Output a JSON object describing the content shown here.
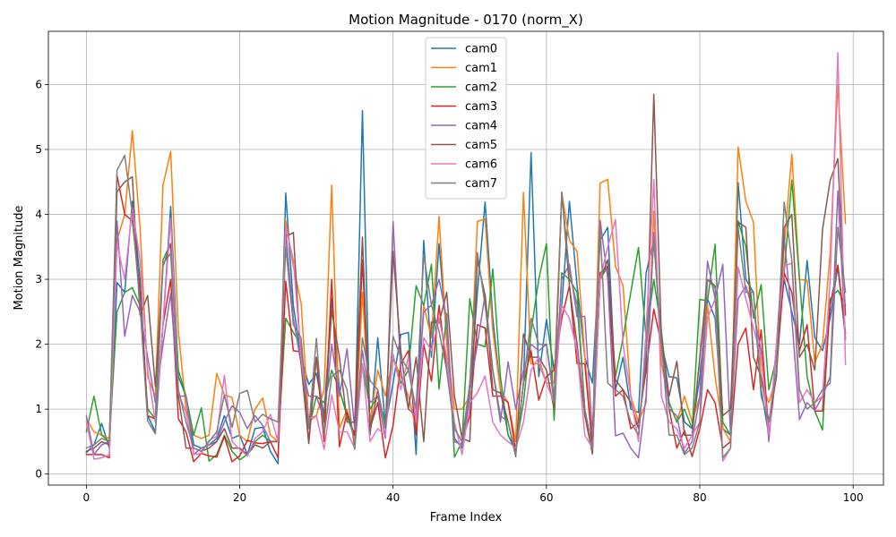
{
  "chart_data": {
    "type": "line",
    "title": "Motion Magnitude - 0170 (norm_X)",
    "xlabel": "Frame Index",
    "ylabel": "Motion Magnitude",
    "xlim": [
      -4.95,
      103.95
    ],
    "ylim": [
      -0.17,
      6.82
    ],
    "xticks": [
      0,
      20,
      40,
      60,
      80,
      100
    ],
    "yticks": [
      0,
      1,
      2,
      3,
      4,
      5,
      6
    ],
    "grid": true,
    "legend_position": "top-center",
    "x": [
      0,
      1,
      2,
      3,
      4,
      5,
      6,
      7,
      8,
      9,
      10,
      11,
      12,
      13,
      14,
      15,
      16,
      17,
      18,
      19,
      20,
      21,
      22,
      23,
      24,
      25,
      26,
      27,
      28,
      29,
      30,
      31,
      32,
      33,
      34,
      35,
      36,
      37,
      38,
      39,
      40,
      41,
      42,
      43,
      44,
      45,
      46,
      47,
      48,
      49,
      50,
      51,
      52,
      53,
      54,
      55,
      56,
      57,
      58,
      59,
      60,
      61,
      62,
      63,
      64,
      65,
      66,
      67,
      68,
      69,
      70,
      71,
      72,
      73,
      74,
      75,
      76,
      77,
      78,
      79,
      80,
      81,
      82,
      83,
      84,
      85,
      86,
      87,
      88,
      89,
      90,
      91,
      92,
      93,
      94,
      95,
      96,
      97,
      98,
      99
    ],
    "series": [
      {
        "name": "cam0",
        "color": "#1f77b4",
        "values": [
          0.33,
          0.45,
          0.78,
          0.4,
          2.95,
          2.8,
          4.2,
          3.0,
          0.9,
          0.65,
          2.3,
          4.12,
          1.5,
          1.2,
          0.45,
          0.4,
          0.45,
          0.55,
          0.9,
          0.55,
          0.6,
          0.3,
          0.7,
          0.72,
          0.35,
          0.16,
          4.33,
          2.6,
          1.8,
          1.38,
          1.55,
          0.9,
          2.7,
          1.3,
          0.9,
          0.55,
          5.6,
          0.6,
          2.1,
          0.75,
          1.4,
          2.15,
          2.18,
          0.3,
          3.6,
          1.8,
          3.55,
          2.1,
          0.55,
          0.4,
          1.2,
          2.8,
          4.19,
          2.4,
          1.3,
          0.6,
          0.35,
          1.4,
          4.95,
          1.5,
          2.38,
          1.6,
          2.6,
          4.2,
          2.9,
          1.8,
          1.4,
          3.6,
          3.8,
          1.3,
          1.8,
          1.0,
          0.95,
          3.1,
          3.6,
          2.0,
          1.5,
          1.48,
          0.8,
          0.7,
          1.5,
          2.7,
          2.4,
          0.7,
          0.6,
          4.49,
          3.0,
          2.8,
          1.3,
          0.6,
          1.9,
          3.0,
          2.5,
          2.0,
          3.29,
          2.1,
          1.9,
          2.4,
          3.2,
          2.1
        ]
      },
      {
        "name": "cam1",
        "color": "#ff7f0e",
        "values": [
          0.85,
          0.65,
          0.6,
          0.55,
          3.6,
          4.0,
          5.29,
          3.8,
          1.5,
          1.2,
          4.45,
          4.97,
          2.2,
          1.0,
          0.6,
          0.55,
          0.6,
          1.55,
          1.22,
          1.18,
          0.6,
          0.5,
          1.0,
          1.17,
          0.6,
          0.5,
          3.9,
          3.2,
          2.64,
          0.8,
          0.9,
          1.3,
          4.45,
          0.7,
          1.0,
          0.5,
          2.8,
          0.8,
          1.6,
          1.2,
          1.8,
          1.5,
          1.2,
          0.7,
          2.6,
          2.1,
          3.97,
          2.0,
          1.0,
          1.0,
          1.2,
          3.89,
          3.93,
          2.2,
          1.3,
          1.1,
          0.5,
          4.34,
          1.7,
          1.7,
          1.4,
          1.4,
          4.33,
          3.6,
          3.43,
          1.8,
          0.5,
          4.48,
          4.54,
          3.2,
          2.9,
          1.2,
          0.8,
          1.1,
          4.05,
          1.7,
          1.1,
          0.8,
          1.2,
          0.8,
          1.2,
          2.6,
          1.5,
          0.7,
          0.5,
          5.04,
          4.2,
          3.88,
          1.4,
          1.1,
          1.5,
          3.5,
          4.93,
          3.0,
          2.98,
          1.72,
          2.0,
          3.4,
          6.0,
          3.86
        ]
      },
      {
        "name": "cam2",
        "color": "#2ca02c",
        "values": [
          0.65,
          1.2,
          0.6,
          0.5,
          2.5,
          2.8,
          2.87,
          2.6,
          1.0,
          0.85,
          3.3,
          3.55,
          1.6,
          1.2,
          0.6,
          1.02,
          0.2,
          0.3,
          0.6,
          0.35,
          0.22,
          0.3,
          0.5,
          0.6,
          0.5,
          0.5,
          2.4,
          2.18,
          2.0,
          0.7,
          1.2,
          1.1,
          1.6,
          1.3,
          0.9,
          0.6,
          1.7,
          1.0,
          1.2,
          0.8,
          1.8,
          1.4,
          1.6,
          2.9,
          2.6,
          3.23,
          1.31,
          2.47,
          0.26,
          0.5,
          2.7,
          2.0,
          1.96,
          3.16,
          1.5,
          0.6,
          0.4,
          1.1,
          2.2,
          3.0,
          3.55,
          0.83,
          3.1,
          3.0,
          2.8,
          1.0,
          0.4,
          3.0,
          3.2,
          1.5,
          2.1,
          2.8,
          3.49,
          2.1,
          3.0,
          2.2,
          1.1,
          0.8,
          1.0,
          0.7,
          2.69,
          2.67,
          3.54,
          0.8,
          0.6,
          3.9,
          3.5,
          2.4,
          2.92,
          1.3,
          1.8,
          3.1,
          4.53,
          3.0,
          1.5,
          0.97,
          0.68,
          2.7,
          2.83,
          2.6
        ]
      },
      {
        "name": "cam3",
        "color": "#d62728",
        "values": [
          0.3,
          0.3,
          0.3,
          0.25,
          4.6,
          4.0,
          3.9,
          2.8,
          0.9,
          0.85,
          2.3,
          3.0,
          0.85,
          0.65,
          0.19,
          0.32,
          0.28,
          0.26,
          0.58,
          0.19,
          0.28,
          0.52,
          0.48,
          0.47,
          0.5,
          0.25,
          2.97,
          1.9,
          1.88,
          0.5,
          1.8,
          0.5,
          3.0,
          0.42,
          0.95,
          0.6,
          3.3,
          0.7,
          1.1,
          0.25,
          0.75,
          1.7,
          1.9,
          0.6,
          2.0,
          1.43,
          2.6,
          1.6,
          0.7,
          0.5,
          0.9,
          2.3,
          2.25,
          1.2,
          1.2,
          1.1,
          0.35,
          1.4,
          1.9,
          1.14,
          1.5,
          1.6,
          2.4,
          2.9,
          1.7,
          1.7,
          0.4,
          3.1,
          3.2,
          1.2,
          1.3,
          0.7,
          0.8,
          1.6,
          2.54,
          2.0,
          1.0,
          0.4,
          0.67,
          0.27,
          0.7,
          1.3,
          1.1,
          0.4,
          0.5,
          2.0,
          2.25,
          1.3,
          2.22,
          0.6,
          1.6,
          3.1,
          2.8,
          1.9,
          2.3,
          0.97,
          0.97,
          2.6,
          3.22,
          2.17
        ]
      },
      {
        "name": "cam4",
        "color": "#9467bd",
        "values": [
          0.9,
          0.3,
          0.45,
          0.5,
          3.9,
          2.12,
          2.75,
          2.5,
          1.8,
          1.1,
          2.0,
          2.78,
          1.2,
          1.2,
          0.3,
          0.4,
          0.45,
          0.5,
          0.8,
          1.05,
          0.95,
          0.7,
          0.9,
          0.75,
          0.5,
          0.5,
          3.75,
          2.4,
          1.7,
          1.2,
          1.2,
          0.85,
          2.0,
          1.2,
          1.93,
          0.7,
          1.9,
          1.1,
          1.2,
          0.55,
          3.89,
          1.6,
          1.0,
          0.9,
          2.5,
          2.6,
          3.0,
          2.4,
          0.5,
          0.45,
          1.3,
          2.0,
          2.77,
          1.6,
          0.8,
          1.73,
          1.0,
          1.6,
          2.0,
          1.9,
          2.0,
          1.2,
          3.0,
          3.23,
          2.42,
          2.43,
          0.6,
          3.91,
          3.0,
          0.59,
          0.63,
          0.4,
          0.25,
          1.2,
          3.72,
          2.0,
          1.0,
          0.9,
          0.32,
          0.5,
          1.2,
          3.28,
          2.7,
          3.23,
          0.6,
          2.7,
          2.9,
          2.5,
          1.9,
          0.5,
          2.0,
          3.65,
          2.4,
          0.84,
          1.1,
          0.98,
          1.2,
          1.5,
          4.36,
          2.07
        ]
      },
      {
        "name": "cam5",
        "color": "#8c564b",
        "values": [
          0.35,
          0.4,
          0.5,
          0.45,
          4.35,
          4.5,
          4.58,
          2.45,
          2.75,
          1.35,
          3.2,
          3.55,
          1.2,
          0.4,
          0.4,
          0.35,
          0.4,
          0.5,
          0.7,
          0.4,
          0.4,
          0.3,
          0.45,
          0.4,
          0.5,
          0.5,
          3.66,
          3.72,
          1.7,
          0.47,
          1.8,
          0.8,
          2.52,
          1.8,
          0.8,
          0.8,
          3.65,
          0.65,
          1.3,
          0.7,
          3.43,
          1.9,
          1.0,
          1.8,
          0.5,
          2.34,
          2.33,
          2.8,
          1.2,
          0.55,
          0.5,
          3.3,
          2.75,
          1.3,
          1.25,
          0.8,
          0.27,
          2.16,
          1.8,
          1.8,
          1.6,
          1.0,
          4.34,
          2.9,
          2.0,
          0.9,
          0.31,
          3.0,
          3.3,
          1.45,
          1.3,
          1.1,
          0.7,
          1.7,
          5.85,
          2.1,
          1.2,
          1.74,
          0.6,
          0.6,
          1.8,
          3.0,
          2.9,
          0.9,
          1.0,
          3.88,
          3.8,
          1.8,
          1.5,
          0.8,
          1.5,
          3.8,
          4.0,
          1.8,
          2.0,
          1.6,
          3.77,
          4.52,
          4.86,
          2.45
        ]
      },
      {
        "name": "cam6",
        "color": "#e377c2",
        "values": [
          0.8,
          0.23,
          0.25,
          0.3,
          3.55,
          3.0,
          4.1,
          3.3,
          1.6,
          0.8,
          2.3,
          3.94,
          1.25,
          0.95,
          0.3,
          0.32,
          0.52,
          0.58,
          1.52,
          0.5,
          0.38,
          0.28,
          0.55,
          0.65,
          0.92,
          0.5,
          3.8,
          3.3,
          1.8,
          0.85,
          0.9,
          0.38,
          1.22,
          0.65,
          0.65,
          0.4,
          1.7,
          0.5,
          0.7,
          0.6,
          1.85,
          1.3,
          1.8,
          0.8,
          2.1,
          1.9,
          2.4,
          1.8,
          0.8,
          0.3,
          1.1,
          1.25,
          1.51,
          0.8,
          0.6,
          0.5,
          0.4,
          0.8,
          1.6,
          1.8,
          1.4,
          1.1,
          2.6,
          2.4,
          1.9,
          0.6,
          0.4,
          3.0,
          3.5,
          3.92,
          2.0,
          1.2,
          0.5,
          2.2,
          4.54,
          1.2,
          0.8,
          0.7,
          0.4,
          0.6,
          0.8,
          2.4,
          2.7,
          0.2,
          0.4,
          3.19,
          2.7,
          2.25,
          1.8,
          0.6,
          2.0,
          3.2,
          3.25,
          1.1,
          1.3,
          1.1,
          1.2,
          3.0,
          6.49,
          1.69
        ]
      },
      {
        "name": "cam7",
        "color": "#7f7f7f",
        "values": [
          0.4,
          0.45,
          0.55,
          0.5,
          4.68,
          4.91,
          4.0,
          2.6,
          0.82,
          0.62,
          3.24,
          3.4,
          1.3,
          0.8,
          0.4,
          0.35,
          0.5,
          0.65,
          1.22,
          0.72,
          1.24,
          1.29,
          0.8,
          0.92,
          0.85,
          0.8,
          3.5,
          2.3,
          2.1,
          0.7,
          2.09,
          0.6,
          1.5,
          1.6,
          1.3,
          0.38,
          2.1,
          1.44,
          1.3,
          0.7,
          2.12,
          1.8,
          1.6,
          1.0,
          3.38,
          2.6,
          2.2,
          1.6,
          0.7,
          0.5,
          1.4,
          3.41,
          2.6,
          1.6,
          0.9,
          0.8,
          0.3,
          1.4,
          2.4,
          2.0,
          2.0,
          1.1,
          4.34,
          3.1,
          2.6,
          1.0,
          0.38,
          3.8,
          1.4,
          1.3,
          1.2,
          0.8,
          0.6,
          1.9,
          3.6,
          2.0,
          0.6,
          0.6,
          0.3,
          0.4,
          0.8,
          3.0,
          2.86,
          0.25,
          0.4,
          3.8,
          2.8,
          2.8,
          1.2,
          0.8,
          1.6,
          4.19,
          3.3,
          1.3,
          1.0,
          1.1,
          1.3,
          1.4,
          3.8,
          2.8
        ]
      }
    ]
  }
}
